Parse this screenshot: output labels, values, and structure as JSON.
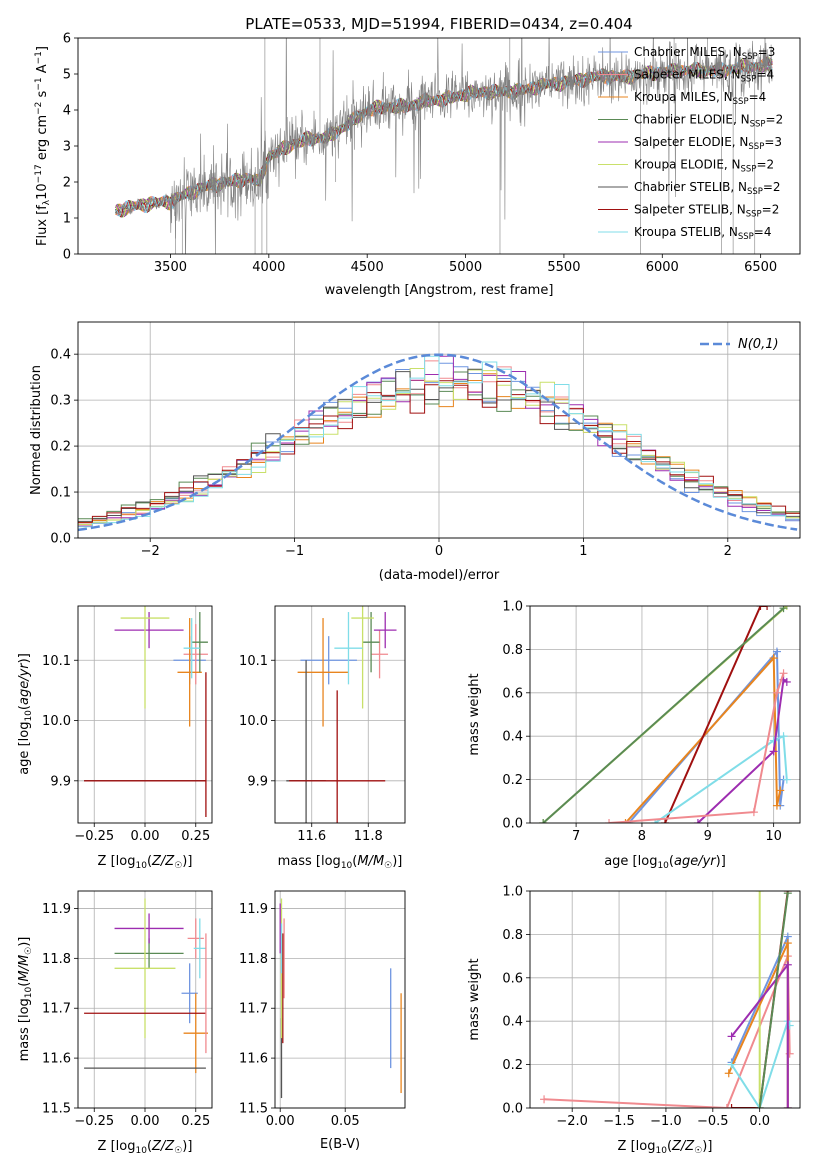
{
  "figure_title": "PLATE=0533, MJD=51994, FIBERID=0434, z=0.404",
  "series_colors": {
    "Chabrier MILES": "#6f95e0",
    "Salpeter MILES": "#f08a8f",
    "Kroupa MILES": "#e8851f",
    "Chabrier ELODIE": "#5a8a55",
    "Salpeter ELODIE": "#9d2db0",
    "Kroupa ELODIE": "#c9e06a",
    "Chabrier STELIB": "#555555",
    "Salpeter STELIB": "#a01010",
    "Kroupa STELIB": "#80dde8"
  },
  "chart_data": [
    {
      "id": "spectrum",
      "type": "line",
      "title": "PLATE=0533, MJD=51994, FIBERID=0434, z=0.404",
      "xlabel": "wavelength [Angstrom, rest frame]",
      "ylabel": "Flux [f_λ10^-17 erg cm^-2 s^-1 A^-1]",
      "xlim": [
        3030,
        6700
      ],
      "ylim": [
        0,
        6
      ],
      "xticks": [
        3500,
        4000,
        4500,
        5000,
        5500,
        6000,
        6500
      ],
      "yticks": [
        0,
        1,
        2,
        3,
        4,
        5,
        6
      ],
      "grid": false,
      "legend": "top-right",
      "legend_entries": [
        {
          "label": "Chabrier MILES, N_SSP=3",
          "text": "Chabrier MILES, N",
          "sub": "SSP",
          "tail": "=3",
          "series": "Chabrier MILES"
        },
        {
          "label": "Salpeter MILES, N_SSP=4",
          "text": "Salpeter MILES, N",
          "sub": "SSP",
          "tail": "=4",
          "series": "Salpeter MILES"
        },
        {
          "label": "Kroupa MILES, N_SSP=4",
          "text": "Kroupa MILES, N",
          "sub": "SSP",
          "tail": "=4",
          "series": "Kroupa MILES"
        },
        {
          "label": "Chabrier ELODIE, N_SSP=2",
          "text": "Chabrier ELODIE, N",
          "sub": "SSP",
          "tail": "=2",
          "series": "Chabrier ELODIE"
        },
        {
          "label": "Salpeter ELODIE, N_SSP=3",
          "text": "Salpeter ELODIE, N",
          "sub": "SSP",
          "tail": "=3",
          "series": "Salpeter ELODIE"
        },
        {
          "label": "Kroupa ELODIE, N_SSP=2",
          "text": "Kroupa ELODIE, N",
          "sub": "SSP",
          "tail": "=2",
          "series": "Kroupa ELODIE"
        },
        {
          "label": "Chabrier STELIB, N_SSP=2",
          "text": "Chabrier STELIB, N",
          "sub": "SSP",
          "tail": "=2",
          "series": "Chabrier STELIB"
        },
        {
          "label": "Salpeter STELIB, N_SSP=2",
          "text": "Salpeter STELIB, N",
          "sub": "SSP",
          "tail": "=2",
          "series": "Salpeter STELIB"
        },
        {
          "label": "Kroupa STELIB, N_SSP=4",
          "text": "Kroupa STELIB, N",
          "sub": "SSP",
          "tail": "=4",
          "series": "Kroupa STELIB"
        }
      ],
      "data_color": "#808080",
      "continuum_x": [
        3220,
        3300,
        3400,
        3500,
        3600,
        3700,
        3800,
        3900,
        3950,
        4000,
        4100,
        4200,
        4300,
        4400,
        4500,
        4600,
        4700,
        4800,
        4900,
        5000,
        5100,
        5200,
        5300,
        5400,
        5500,
        5600,
        5700,
        5800,
        5900,
        6000,
        6100,
        6200,
        6300,
        6400,
        6550
      ],
      "continuum_y": [
        1.2,
        1.3,
        1.4,
        1.45,
        1.7,
        1.9,
        2.0,
        2.1,
        2.0,
        2.7,
        3.0,
        3.2,
        3.25,
        3.6,
        4.0,
        4.1,
        4.1,
        4.25,
        4.3,
        4.45,
        4.5,
        4.5,
        4.55,
        4.7,
        4.75,
        4.85,
        4.95,
        4.9,
        5.0,
        5.05,
        5.1,
        5.1,
        5.1,
        5.2,
        5.25
      ]
    },
    {
      "id": "residuals",
      "type": "step",
      "xlabel": "(data-model)/error",
      "ylabel": "Normed distribution",
      "xlim": [
        -2.5,
        2.5
      ],
      "ylim": [
        0,
        0.47
      ],
      "xticks": [
        -2,
        -1,
        0,
        1,
        2
      ],
      "yticks": [
        0.0,
        0.1,
        0.2,
        0.3,
        0.4
      ],
      "grid": true,
      "legend": "top-right",
      "legend_label": "N(0,1)",
      "gaussian_color": "#5b8ad8",
      "bin_width": 0.1
    },
    {
      "id": "age-vs-Z",
      "type": "errorbar",
      "xlabel": "Z [log10(Z/Z☉)]",
      "ylabel": "age [log10(age/yr)]",
      "xlim": [
        -0.33,
        0.33
      ],
      "ylim": [
        9.83,
        10.19
      ],
      "xticks": [
        -0.25,
        0.0,
        0.25
      ],
      "yticks": [
        9.9,
        10.0,
        10.1
      ],
      "grid": true,
      "points": [
        {
          "series": "Chabrier MILES",
          "x": 0.22,
          "y": 10.1,
          "xerr": 0.08,
          "yerr": 0.04
        },
        {
          "series": "Salpeter MILES",
          "x": 0.25,
          "y": 10.11,
          "xerr": 0.06,
          "yerr": 0.05
        },
        {
          "series": "Kroupa MILES",
          "x": 0.22,
          "y": 10.08,
          "xerr": 0.06,
          "yerr": 0.09
        },
        {
          "series": "Chabrier ELODIE",
          "x": 0.27,
          "y": 10.13,
          "xerr": 0.04,
          "yerr": 0.05
        },
        {
          "series": "Salpeter ELODIE",
          "x": 0.02,
          "y": 10.15,
          "xerr": 0.17,
          "yerr": 0.03
        },
        {
          "series": "Kroupa ELODIE",
          "x": 0.0,
          "y": 10.17,
          "xerr": 0.12,
          "yerr": 0.15
        },
        {
          "series": "Chabrier STELIB",
          "x": 0.0,
          "y": 9.9,
          "xerr": 0.3,
          "yerr": 0.0
        },
        {
          "series": "Salpeter STELIB",
          "x": 0.0,
          "y": 9.9,
          "xerr": 0.3,
          "yerr": 0.0
        },
        {
          "series": "Kroupa STELIB",
          "x": 0.23,
          "y": 10.12,
          "xerr": 0.04,
          "yerr": 0.05
        },
        {
          "series": "Salpeter STELIB",
          "x": 0.3,
          "y": 9.96,
          "xerr": 0.0,
          "yerr": 0.12
        }
      ]
    },
    {
      "id": "age-vs-mass",
      "type": "errorbar",
      "xlabel": "mass [log10(M/M☉)]",
      "ylabel": "",
      "xlim": [
        11.47,
        11.93
      ],
      "ylim": [
        9.83,
        10.19
      ],
      "xticks": [
        11.6,
        11.8
      ],
      "yticks": [
        9.9,
        10.0,
        10.1
      ],
      "grid": true,
      "points": [
        {
          "series": "Chabrier MILES",
          "x": 11.66,
          "y": 10.1,
          "xerr": 0.1,
          "yerr": 0.04
        },
        {
          "series": "Salpeter MILES",
          "x": 11.84,
          "y": 10.11,
          "xerr": 0.03,
          "yerr": 0.04
        },
        {
          "series": "Kroupa MILES",
          "x": 11.64,
          "y": 10.08,
          "xerr": 0.09,
          "yerr": 0.09
        },
        {
          "series": "Chabrier ELODIE",
          "x": 11.81,
          "y": 10.13,
          "xerr": 0.03,
          "yerr": 0.05
        },
        {
          "series": "Salpeter ELODIE",
          "x": 11.86,
          "y": 10.15,
          "xerr": 0.04,
          "yerr": 0.03
        },
        {
          "series": "Kroupa ELODIE",
          "x": 11.78,
          "y": 10.17,
          "xerr": 0.04,
          "yerr": 0.15
        },
        {
          "series": "Chabrier STELIB",
          "x": 11.58,
          "y": 9.9,
          "xerr": 0.07,
          "yerr": 0.2
        },
        {
          "series": "Salpeter STELIB",
          "x": 11.69,
          "y": 9.9,
          "xerr": 0.17,
          "yerr": 0.15
        },
        {
          "series": "Kroupa STELIB",
          "x": 11.73,
          "y": 10.12,
          "xerr": 0.05,
          "yerr": 0.06
        }
      ]
    },
    {
      "id": "massweight-vs-age",
      "type": "line",
      "xlabel": "age [log10(age/yr)]",
      "ylabel": "mass weight",
      "xlim": [
        6.3,
        10.4
      ],
      "ylim": [
        0,
        1
      ],
      "xticks": [
        7,
        8,
        9,
        10
      ],
      "yticks": [
        0.0,
        0.2,
        0.4,
        0.6,
        0.8,
        1.0
      ],
      "grid": true,
      "lines": [
        {
          "series": "Kroupa ELODIE",
          "x": [
            6.5,
            10.2
          ],
          "y": [
            0.0,
            1.0
          ]
        },
        {
          "series": "Chabrier MILES",
          "x": [
            7.8,
            10.05,
            10.1,
            10.15
          ],
          "y": [
            0.0,
            0.79,
            0.08,
            0.2
          ]
        },
        {
          "series": "Kroupa MILES",
          "x": [
            7.75,
            10.0,
            10.05,
            10.1
          ],
          "y": [
            0.0,
            0.76,
            0.08,
            0.15
          ]
        },
        {
          "series": "Salpeter STELIB",
          "x": [
            8.35,
            9.8,
            9.9
          ],
          "y": [
            0.0,
            1.0,
            1.0
          ]
        },
        {
          "series": "Kroupa STELIB",
          "x": [
            8.2,
            10.0,
            10.15,
            10.2
          ],
          "y": [
            0.0,
            0.38,
            0.4,
            0.2
          ]
        },
        {
          "series": "Salpeter ELODIE",
          "x": [
            8.85,
            10.0,
            10.15,
            10.2
          ],
          "y": [
            0.0,
            0.33,
            0.66,
            0.65
          ]
        },
        {
          "series": "Salpeter MILES",
          "x": [
            7.5,
            9.7,
            10.05,
            10.15
          ],
          "y": [
            0.0,
            0.05,
            0.6,
            0.69
          ]
        },
        {
          "series": "Chabrier ELODIE",
          "x": [
            6.5,
            10.15
          ],
          "y": [
            0.0,
            0.99
          ]
        }
      ]
    },
    {
      "id": "mass-vs-Z",
      "type": "errorbar",
      "xlabel": "Z [log10(Z/Z☉)]",
      "ylabel": "mass [log10(M/M☉)]",
      "xlim": [
        -0.33,
        0.33
      ],
      "ylim": [
        11.5,
        11.935
      ],
      "xticks": [
        -0.25,
        0.0,
        0.25
      ],
      "yticks": [
        11.5,
        11.6,
        11.7,
        11.8,
        11.9
      ],
      "grid": true,
      "points": [
        {
          "series": "Chabrier MILES",
          "x": 0.22,
          "y": 11.73,
          "xerr": 0.04,
          "yerr": 0.06
        },
        {
          "series": "Salpeter MILES",
          "x": 0.25,
          "y": 11.84,
          "xerr": 0.04,
          "yerr": 0.04
        },
        {
          "series": "Kroupa MILES",
          "x": 0.25,
          "y": 11.65,
          "xerr": 0.06,
          "yerr": 0.08
        },
        {
          "series": "Chabrier ELODIE",
          "x": 0.02,
          "y": 11.81,
          "xerr": 0.17,
          "yerr": 0.03
        },
        {
          "series": "Salpeter ELODIE",
          "x": 0.02,
          "y": 11.86,
          "xerr": 0.17,
          "yerr": 0.03
        },
        {
          "series": "Kroupa ELODIE",
          "x": 0.0,
          "y": 11.78,
          "xerr": 0.15,
          "yerr": 0.14
        },
        {
          "series": "Chabrier STELIB",
          "x": 0.0,
          "y": 11.58,
          "xerr": 0.3,
          "yerr": 0.0
        },
        {
          "series": "Salpeter STELIB",
          "x": 0.0,
          "y": 11.69,
          "xerr": 0.3,
          "yerr": 0.0
        },
        {
          "series": "Kroupa STELIB",
          "x": 0.27,
          "y": 11.82,
          "xerr": 0.03,
          "yerr": 0.06
        },
        {
          "series": "Salpeter MILES",
          "x": 0.3,
          "y": 11.73,
          "xerr": 0.0,
          "yerr": 0.12
        }
      ]
    },
    {
      "id": "mass-vs-ebv",
      "type": "errorbar",
      "xlabel": "E(B-V)",
      "ylabel": "",
      "xlim": [
        -0.004,
        0.096
      ],
      "ylim": [
        11.5,
        11.935
      ],
      "xticks": [
        0.0,
        0.05
      ],
      "yticks": [
        11.5,
        11.6,
        11.7,
        11.8,
        11.9
      ],
      "grid": true,
      "points": [
        {
          "series": "Chabrier MILES",
          "x": 0.085,
          "y": 11.68,
          "xerr": 0.0,
          "yerr": 0.1
        },
        {
          "series": "Kroupa MILES",
          "x": 0.093,
          "y": 11.63,
          "xerr": 0.0,
          "yerr": 0.1
        },
        {
          "series": "Salpeter MILES",
          "x": 0.003,
          "y": 11.8,
          "xerr": 0.0,
          "yerr": 0.08
        },
        {
          "series": "Chabrier STELIB",
          "x": 0.001,
          "y": 11.6,
          "xerr": 0.0,
          "yerr": 0.08
        },
        {
          "series": "Salpeter STELIB",
          "x": 0.002,
          "y": 11.74,
          "xerr": 0.0,
          "yerr": 0.11
        },
        {
          "series": "Kroupa ELODIE",
          "x": 0.001,
          "y": 11.78,
          "xerr": 0.0,
          "yerr": 0.14
        },
        {
          "series": "Salpeter ELODIE",
          "x": 0.0,
          "y": 11.86,
          "xerr": 0.0,
          "yerr": 0.05
        },
        {
          "series": "Kroupa STELIB",
          "x": 0.001,
          "y": 11.82,
          "xerr": 0.0,
          "yerr": 0.05
        }
      ]
    },
    {
      "id": "massweight-vs-Z",
      "type": "line",
      "xlabel": "Z [log10(Z/Z☉)]",
      "ylabel": "mass weight",
      "xlim": [
        -2.45,
        0.43
      ],
      "ylim": [
        0,
        1
      ],
      "xticks": [
        -2.0,
        -1.5,
        -1.0,
        -0.5,
        0.0
      ],
      "yticks": [
        0.0,
        0.2,
        0.4,
        0.6,
        0.8,
        1.0
      ],
      "grid": true,
      "lines": [
        {
          "series": "Salpeter MILES",
          "x": [
            -2.3,
            -0.35,
            0.3,
            0.32
          ],
          "y": [
            0.04,
            0.0,
            0.7,
            0.25
          ]
        },
        {
          "series": "Kroupa ELODIE",
          "x": [
            0.0,
            0.0
          ],
          "y": [
            0.0,
            1.0
          ]
        },
        {
          "series": "Salpeter STELIB",
          "x": [
            -0.3,
            0.0,
            0.3
          ],
          "y": [
            0.0,
            0.0,
            1.0
          ]
        },
        {
          "series": "Chabrier MILES",
          "x": [
            -0.3,
            0.3,
            0.3
          ],
          "y": [
            0.21,
            0.79,
            0.0
          ]
        },
        {
          "series": "Kroupa MILES",
          "x": [
            -0.33,
            0.3,
            0.3
          ],
          "y": [
            0.16,
            0.76,
            0.0
          ]
        },
        {
          "series": "Kroupa STELIB",
          "x": [
            -0.3,
            0.0,
            0.3,
            0.32
          ],
          "y": [
            0.2,
            0.0,
            0.4,
            0.38
          ]
        },
        {
          "series": "Salpeter ELODIE",
          "x": [
            -0.3,
            0.3,
            0.3
          ],
          "y": [
            0.33,
            0.66,
            0.0
          ]
        },
        {
          "series": "Chabrier ELODIE",
          "x": [
            0.0,
            0.3
          ],
          "y": [
            0.0,
            0.99
          ]
        }
      ]
    }
  ]
}
